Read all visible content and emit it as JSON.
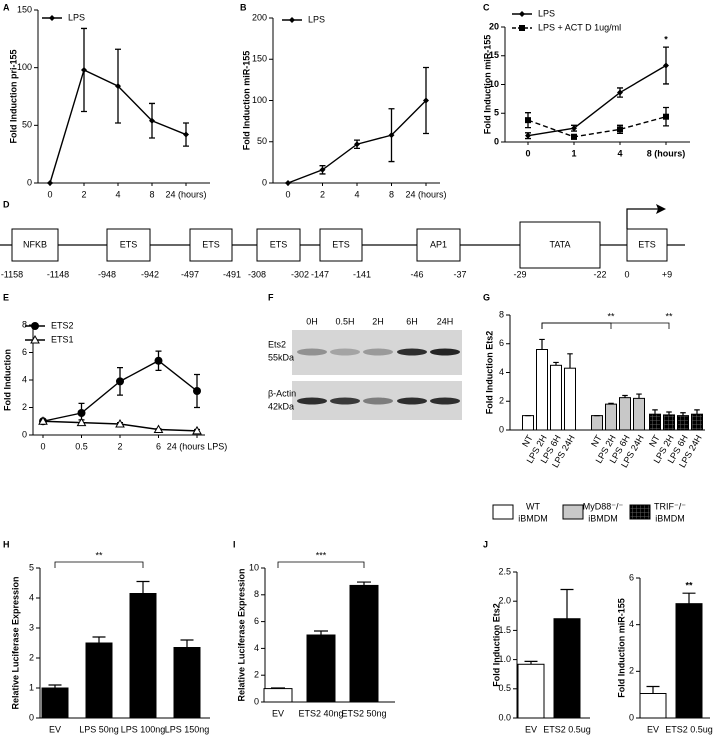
{
  "chart_data": [
    {
      "type": "line",
      "letter": "A",
      "ylabel": "Fold Induction pri-155",
      "categories": [
        "0",
        "2",
        "4",
        "8",
        "24 (hours)"
      ],
      "ylim": [
        0,
        150
      ],
      "yticks": [
        0,
        50,
        100,
        150
      ],
      "series": [
        {
          "name": "LPS",
          "color": "#000000",
          "marker": "diamond",
          "dash": false,
          "values": [
            0,
            98,
            84,
            54,
            42
          ],
          "errors": [
            0,
            36,
            32,
            15,
            10
          ]
        }
      ]
    },
    {
      "type": "line",
      "letter": "B",
      "ylabel": "Fold Induction miR-155",
      "categories": [
        "0",
        "2",
        "4",
        "8",
        "24 (hours)"
      ],
      "ylim": [
        0,
        200
      ],
      "yticks": [
        0,
        50,
        100,
        150,
        200
      ],
      "series": [
        {
          "name": "LPS",
          "color": "#000000",
          "marker": "diamond",
          "dash": false,
          "values": [
            0,
            16,
            47,
            58,
            100
          ],
          "errors": [
            0,
            5,
            5,
            32,
            40
          ]
        }
      ]
    },
    {
      "type": "line",
      "letter": "C",
      "ylabel": "Fold Induction miR-155",
      "bold_labels": true,
      "categories": [
        "0",
        "1",
        "4",
        "8 (hours)"
      ],
      "ylim": [
        0,
        20
      ],
      "yticks": [
        0,
        5,
        10,
        15,
        20
      ],
      "series": [
        {
          "name": "LPS",
          "color": "#000000",
          "marker": "diamond",
          "dash": false,
          "values": [
            1.1,
            2.4,
            8.6,
            13.3
          ],
          "errors": [
            0.5,
            0.5,
            0.8,
            3.2
          ]
        },
        {
          "name": "LPS + ACT D 1ug/ml",
          "color": "#000000",
          "marker": "square",
          "dash": true,
          "values": [
            3.8,
            0.9,
            2.2,
            4.4
          ],
          "errors": [
            1.3,
            0.4,
            0.7,
            1.6
          ]
        }
      ],
      "annotations": [
        {
          "text": "*",
          "series": 0,
          "at": 3
        }
      ]
    },
    {
      "type": "line",
      "letter": "E",
      "ylabel": "Fold Induction",
      "categories": [
        "0",
        "0.5",
        "2",
        "6",
        "24 (hours LPS)"
      ],
      "ylim": [
        0,
        8
      ],
      "yticks": [
        0,
        2,
        4,
        6,
        8
      ],
      "series": [
        {
          "name": "ETS2",
          "color": "#000000",
          "marker": "circle",
          "dash": false,
          "values": [
            1.0,
            1.6,
            3.9,
            5.4,
            3.2
          ],
          "errors": [
            0.1,
            0.7,
            1.0,
            0.7,
            1.2
          ]
        },
        {
          "name": "ETS1",
          "color": "#000000",
          "marker": "triangle-open",
          "dash": false,
          "values": [
            1.0,
            0.9,
            0.8,
            0.4,
            0.3
          ],
          "errors": [
            0.1,
            0.2,
            0.1,
            0.05,
            0.1
          ]
        }
      ]
    },
    {
      "type": "bar",
      "grouped": true,
      "letter": "G",
      "ylabel": "Fold Induction Ets2",
      "categories": [
        "NT",
        "LPS 2H",
        "LPS 6H",
        "LPS 24H"
      ],
      "ylim": [
        0,
        8
      ],
      "yticks": [
        0,
        2,
        4,
        6,
        8
      ],
      "series": [
        {
          "name": "WT",
          "sub": "iBMDM",
          "color": "#ffffff",
          "values": [
            1.0,
            5.6,
            4.5,
            4.3
          ],
          "errors": [
            0,
            0.7,
            0.2,
            1.0
          ]
        },
        {
          "name": "MyD88⁻/⁻",
          "sub": "iBMDM",
          "color": "#c8c8c8",
          "values": [
            1.0,
            1.8,
            2.25,
            2.2
          ],
          "errors": [
            0,
            0.05,
            0.15,
            0.3
          ]
        },
        {
          "name": "TRIF⁻/⁻",
          "sub": "iBMDM",
          "color": "#000000",
          "pattern": "grid",
          "values": [
            1.1,
            1.05,
            1.0,
            1.1
          ],
          "errors": [
            0.3,
            0.2,
            0.2,
            0.3
          ]
        }
      ],
      "annotations": [
        {
          "text": "**",
          "from": [
            0,
            1
          ],
          "to": [
            1,
            1
          ]
        },
        {
          "text": "**",
          "from": [
            0,
            1
          ],
          "to": [
            2,
            1
          ]
        }
      ]
    },
    {
      "type": "bar",
      "letter": "H",
      "ylabel": "Relative Luciferase Expression",
      "categories": [
        "EV",
        "LPS 50ng",
        "LPS 100ng",
        "LPS 150ng"
      ],
      "ylim": [
        0,
        5
      ],
      "yticks": [
        0,
        1,
        2,
        3,
        4,
        5
      ],
      "series": [
        {
          "color": "#000000",
          "values": [
            1.0,
            2.5,
            4.15,
            2.35
          ],
          "errors": [
            0.1,
            0.2,
            0.4,
            0.25
          ]
        }
      ],
      "annotations": [
        {
          "text": "**",
          "from": 0,
          "to": 2
        }
      ]
    },
    {
      "type": "bar",
      "letter": "I",
      "ylabel": "Relative Luciferase Expression",
      "categories": [
        "EV",
        "ETS2 40ng",
        "ETS2 50ng"
      ],
      "ylim": [
        0,
        10
      ],
      "yticks": [
        0,
        2,
        4,
        6,
        8,
        10
      ],
      "series": [
        {
          "colors": [
            "#ffffff",
            "#000000",
            "#000000"
          ],
          "values": [
            1.0,
            5.0,
            8.7
          ],
          "errors": [
            0.05,
            0.3,
            0.25
          ]
        }
      ],
      "annotations": [
        {
          "text": "***",
          "from": 0,
          "to": 2
        }
      ]
    },
    {
      "type": "bar",
      "letter": "J",
      "ylabel": "Fold Induction Ets2",
      "categories": [
        "EV",
        "ETS2 0.5ug"
      ],
      "ylim": [
        0,
        2.5
      ],
      "yticks": [
        {
          "value": 0,
          "label": "0.0"
        },
        {
          "value": 0.5,
          "label": "0.5"
        },
        {
          "value": 1,
          "label": "1.0"
        },
        {
          "value": 1.5,
          "label": "1.5"
        },
        {
          "value": 2,
          "label": "2.0"
        },
        {
          "value": 2.5,
          "label": "2.5"
        }
      ],
      "series": [
        {
          "colors": [
            "#ffffff",
            "#000000"
          ],
          "values": [
            0.92,
            1.7
          ],
          "errors": [
            0.05,
            0.5
          ]
        }
      ]
    },
    {
      "type": "bar",
      "ylabel": "Fold Induction miR-155",
      "categories": [
        "EV",
        "ETS2 0.5ug"
      ],
      "ylim": [
        0,
        6
      ],
      "yticks": [
        0,
        2,
        4,
        6
      ],
      "series": [
        {
          "colors": [
            "#ffffff",
            "#000000"
          ],
          "values": [
            1.05,
            4.9
          ],
          "errors": [
            0.3,
            0.45
          ]
        }
      ],
      "annotations": [
        {
          "text": "**",
          "at": 1
        }
      ]
    }
  ],
  "promoter_diagram": {
    "letter": "D",
    "elements": [
      {
        "label": "NFKB",
        "start": "-1158",
        "end": "-1148"
      },
      {
        "label": "ETS",
        "start": "-948",
        "end": "-942"
      },
      {
        "label": "ETS",
        "start": "-497",
        "end": "-491"
      },
      {
        "label": "ETS",
        "start": "-308",
        "end": "-302"
      },
      {
        "label": "ETS",
        "start": "-147",
        "end": "-141"
      },
      {
        "label": "AP1",
        "start": "-46",
        "end": "-37"
      },
      {
        "label": "TATA",
        "start": "-29",
        "end": "-22"
      },
      {
        "label": "ETS",
        "start": "0",
        "end": "+9"
      }
    ]
  },
  "western_blot": {
    "letter": "F",
    "lanes": [
      "0H",
      "0.5H",
      "2H",
      "6H",
      "24H"
    ],
    "rows": [
      {
        "protein": "Ets2",
        "size": "55kDa"
      },
      {
        "protein": "β-Actin",
        "size": "42kDa"
      }
    ]
  }
}
